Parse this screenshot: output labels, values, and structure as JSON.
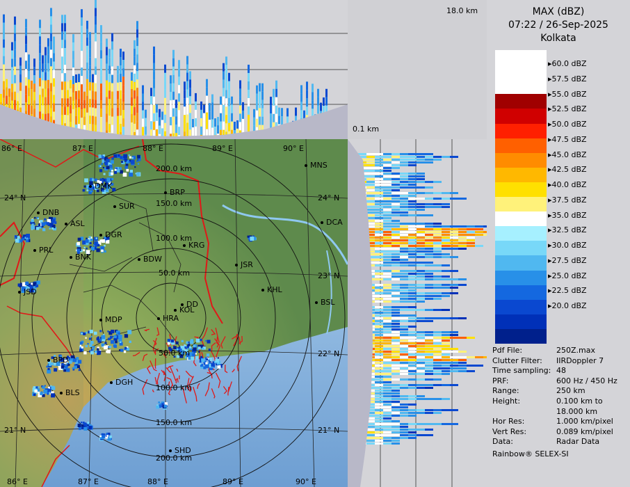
{
  "top_panel": {
    "height_label": "18.0 km"
  },
  "side_panel": {
    "height_label": "0.1 km"
  },
  "legend": {
    "product": "MAX (dBZ)",
    "datetime": "07:22 / 26-Sep-2025",
    "station": "Kolkata",
    "colors": [
      "#ffffff",
      "#ffffff",
      "#ffffff",
      "#a00000",
      "#d00000",
      "#ff2000",
      "#ff6000",
      "#ff8c00",
      "#ffb800",
      "#ffe000",
      "#fff27a",
      "#ffffff",
      "#a6f0ff",
      "#78d8f8",
      "#50b8f0",
      "#2890e8",
      "#1468e0",
      "#0a48d0",
      "#0030b8",
      "#00208c"
    ],
    "labels": [
      "60.0 dBZ",
      "57.5 dBZ",
      "55.0 dBZ",
      "52.5 dBZ",
      "50.0 dBZ",
      "47.5 dBZ",
      "45.0 dBZ",
      "42.5 dBZ",
      "40.0 dBZ",
      "37.5 dBZ",
      "35.0 dBZ",
      "32.5 dBZ",
      "30.0 dBZ",
      "27.5 dBZ",
      "25.0 dBZ",
      "22.5 dBZ",
      "20.0 dBZ"
    ]
  },
  "info": [
    {
      "key": "Pdf File:",
      "value": "250Z.max"
    },
    {
      "key": "Clutter Filter:",
      "value": "IIRDoppler 7"
    },
    {
      "key": "Time sampling:",
      "value": "48"
    },
    {
      "key": "PRF:",
      "value": "600 Hz / 450 Hz"
    },
    {
      "key": "Range:",
      "value": "250 km"
    },
    {
      "key": "Height:",
      "value": "0.100 km to"
    },
    {
      "key": "",
      "value": "18.000 km"
    },
    {
      "key": "Hor Res:",
      "value": "1.000 km/pixel"
    },
    {
      "key": "Vert Res:",
      "value": "0.089 km/pixel"
    },
    {
      "key": "Data:",
      "value": "Radar Data"
    }
  ],
  "credit": "Rainbow® SELEX-SI",
  "map": {
    "lon_top": [
      "86° E",
      "87° E",
      "88° E",
      "89° E",
      "90° E"
    ],
    "lon_bottom": [
      "86° E",
      "87° E",
      "88° E",
      "89° E",
      "90° E"
    ],
    "lat_right": [
      "24° N",
      "23° N",
      "22° N",
      "21° N"
    ],
    "lat_left": [
      "24° N",
      "21° N"
    ],
    "ranges": [
      "200.0 km",
      "150.0 km",
      "100.0 km",
      "50.0 km",
      "50.0 km",
      "100.0 km",
      "150.0 km",
      "200.0 km"
    ],
    "cities": [
      "MNS",
      "BRP",
      "DMK",
      "SUR",
      "DNB",
      "ASL",
      "DGR",
      "PRL",
      "BNK",
      "KRG",
      "BDW",
      "JSR",
      "DCA",
      "KHL",
      "BSL",
      "JSD",
      "MDP",
      "HRA",
      "DD",
      "KOL",
      "BPD",
      "DGH",
      "BLS",
      "SHD"
    ]
  }
}
